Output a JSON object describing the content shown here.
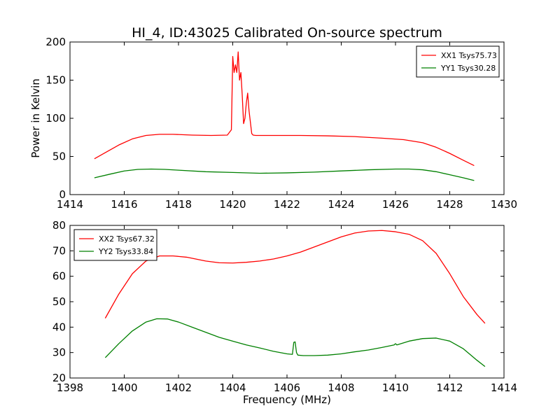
{
  "figure": {
    "title": "HI_4, ID:43025 Calibrated On-source spectrum"
  },
  "chart_data": [
    {
      "type": "line",
      "title": "HI_4, ID:43025 Calibrated On-source spectrum",
      "xlabel": "",
      "ylabel": "Power in Kelvin",
      "xlim": [
        1414,
        1430
      ],
      "ylim": [
        0,
        200
      ],
      "xticks": [
        1414,
        1416,
        1418,
        1420,
        1422,
        1424,
        1426,
        1428,
        1430
      ],
      "yticks": [
        0,
        50,
        100,
        150,
        200
      ],
      "grid": false,
      "legend_position": "top-right",
      "series": [
        {
          "name": "XX1 Tsys75.73",
          "color": "#ff0000",
          "x": [
            1414.9,
            1415.3,
            1415.8,
            1416.3,
            1416.8,
            1417.3,
            1417.8,
            1418.5,
            1419.2,
            1419.8,
            1419.95,
            1420.0,
            1420.05,
            1420.1,
            1420.15,
            1420.2,
            1420.25,
            1420.3,
            1420.35,
            1420.4,
            1420.45,
            1420.5,
            1420.55,
            1420.6,
            1420.65,
            1420.7,
            1420.75,
            1420.85,
            1421.5,
            1422.5,
            1423.5,
            1424.5,
            1425.5,
            1426.3,
            1427.0,
            1427.5,
            1428.0,
            1428.5,
            1428.9
          ],
          "y": [
            47,
            55,
            65,
            73,
            77.5,
            79,
            79,
            78,
            77.5,
            78,
            85,
            181,
            160,
            170,
            160,
            187,
            150,
            160,
            130,
            93,
            100,
            120,
            133,
            110,
            95,
            80,
            78,
            77.5,
            77.5,
            77.5,
            77,
            76,
            74,
            72,
            68,
            62,
            54,
            45,
            38
          ]
        },
        {
          "name": "YY1 Tsys30.28",
          "color": "#008000",
          "x": [
            1414.9,
            1415.5,
            1416.0,
            1416.5,
            1417.0,
            1417.5,
            1418.0,
            1419.0,
            1420.0,
            1421.0,
            1422.0,
            1423.0,
            1424.0,
            1425.0,
            1426.0,
            1426.5,
            1427.0,
            1427.5,
            1428.0,
            1428.5,
            1428.9
          ],
          "y": [
            22,
            27,
            31,
            33,
            33.5,
            33,
            32,
            30,
            29,
            28,
            28.5,
            29.5,
            31,
            32.5,
            33.5,
            33.5,
            32.5,
            30,
            26,
            22,
            18.5
          ]
        }
      ]
    },
    {
      "type": "line",
      "title": "",
      "xlabel": "Frequency (MHz)",
      "ylabel": "",
      "xlim": [
        1398,
        1414
      ],
      "ylim": [
        20,
        80
      ],
      "xticks": [
        1398,
        1400,
        1402,
        1404,
        1406,
        1408,
        1410,
        1412,
        1414
      ],
      "yticks": [
        20,
        30,
        40,
        50,
        60,
        70,
        80
      ],
      "grid": false,
      "legend_position": "top-left",
      "series": [
        {
          "name": "XX2 Tsys67.32",
          "color": "#ff0000",
          "x": [
            1399.3,
            1399.8,
            1400.3,
            1400.8,
            1401.3,
            1401.8,
            1402.3,
            1403.0,
            1403.5,
            1404.0,
            1404.5,
            1405.0,
            1405.5,
            1406.0,
            1406.5,
            1407.0,
            1407.5,
            1408.0,
            1408.5,
            1409.0,
            1409.5,
            1410.0,
            1410.5,
            1411.0,
            1411.5,
            1412.0,
            1412.5,
            1413.0,
            1413.3
          ],
          "y": [
            43.5,
            53,
            61,
            66,
            68,
            68,
            67.5,
            66,
            65.3,
            65.2,
            65.5,
            66,
            66.8,
            68,
            69.5,
            71.5,
            73.5,
            75.5,
            77,
            77.8,
            78,
            77.5,
            76.5,
            74,
            69,
            61,
            52,
            45,
            41.5
          ]
        },
        {
          "name": "YY2 Tsys33.84",
          "color": "#008000",
          "x": [
            1399.3,
            1399.8,
            1400.3,
            1400.8,
            1401.2,
            1401.6,
            1402.0,
            1402.5,
            1403.0,
            1403.5,
            1404.0,
            1404.5,
            1405.0,
            1405.5,
            1406.0,
            1406.2,
            1406.25,
            1406.3,
            1406.35,
            1406.4,
            1406.6,
            1407.0,
            1407.5,
            1408.0,
            1408.5,
            1409.0,
            1409.5,
            1409.95,
            1410.0,
            1410.05,
            1410.5,
            1411.0,
            1411.5,
            1412.0,
            1412.5,
            1413.0,
            1413.3
          ],
          "y": [
            28,
            33.5,
            38.5,
            42,
            43.3,
            43.2,
            42,
            40,
            38,
            36,
            34.5,
            33,
            31.8,
            30.5,
            29.5,
            29.3,
            34,
            34.2,
            30,
            29,
            28.8,
            28.8,
            29,
            29.5,
            30.3,
            31,
            32,
            33,
            33.5,
            33,
            34.5,
            35.5,
            35.7,
            34.5,
            31.5,
            27,
            24.5
          ]
        }
      ]
    }
  ]
}
